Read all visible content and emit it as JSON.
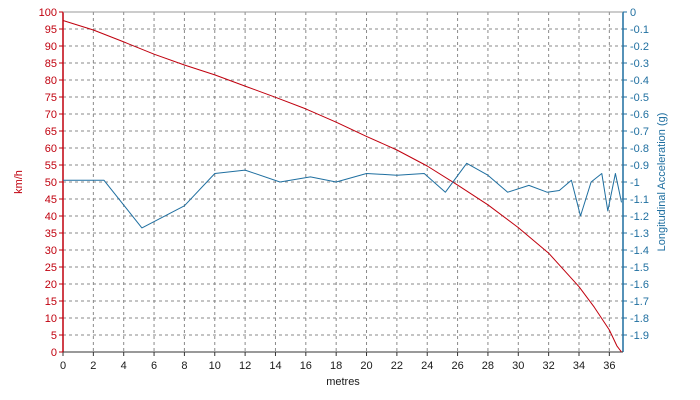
{
  "chart_data": {
    "type": "line",
    "xlabel": "metres",
    "ylabel": "km/h",
    "y2label": "Longitudinal Acceleration (g)",
    "xlim": [
      0,
      36.9
    ],
    "ylim": [
      0,
      100
    ],
    "y2lim": [
      -2,
      0
    ],
    "x_ticks": [
      "0",
      "2",
      "4",
      "6",
      "8",
      "10",
      "12",
      "14",
      "16",
      "18",
      "20",
      "22",
      "24",
      "26",
      "28",
      "30",
      "32",
      "34",
      "36"
    ],
    "y_ticks": [
      "0",
      "5",
      "10",
      "15",
      "20",
      "25",
      "30",
      "35",
      "40",
      "45",
      "50",
      "55",
      "60",
      "65",
      "70",
      "75",
      "80",
      "85",
      "90",
      "95",
      "100"
    ],
    "y2_ticks": [
      "-1.9",
      "-1.8",
      "-1.7",
      "-1.6",
      "-1.5",
      "-1.4",
      "-1.3",
      "-1.2",
      "-1.1",
      "-1",
      "-0.9",
      "-0.8",
      "-0.7",
      "-0.6",
      "-0.5",
      "-0.4",
      "-0.3",
      "-0.2",
      "-0.1",
      "0"
    ],
    "grid": true,
    "series": [
      {
        "axis": "left",
        "color": "#c0000e",
        "x": [
          0,
          2,
          4,
          6,
          8,
          10,
          12,
          14,
          16,
          18,
          20,
          22,
          24,
          26,
          28,
          30,
          32,
          34,
          35,
          36,
          36.5,
          36.8
        ],
        "values": [
          97.5,
          94.7,
          91.2,
          87.6,
          84.4,
          81.5,
          78.2,
          74.9,
          71.5,
          67.6,
          63.4,
          59.4,
          54.7,
          49.1,
          43.3,
          36.6,
          29.1,
          19.2,
          13.2,
          6.5,
          1.8,
          0
        ]
      },
      {
        "axis": "right",
        "color": "#1f6fa0",
        "x": [
          0,
          2.7,
          5.2,
          8,
          10,
          12,
          14.3,
          16.3,
          18,
          20,
          22,
          23.8,
          25.2,
          26.6,
          28,
          29.3,
          30.7,
          31.9,
          32.7,
          33.5,
          34.1,
          34.8,
          35.5,
          35.9,
          36.4,
          36.8
        ],
        "values": [
          -0.99,
          -0.99,
          -1.27,
          -1.14,
          -0.95,
          -0.93,
          -1,
          -0.97,
          -1,
          -0.95,
          -0.96,
          -0.95,
          -1.06,
          -0.89,
          -0.96,
          -1.06,
          -1.02,
          -1.06,
          -1.05,
          -0.99,
          -1.2,
          -1,
          -0.95,
          -1.17,
          -0.95,
          -1.12
        ]
      }
    ]
  }
}
